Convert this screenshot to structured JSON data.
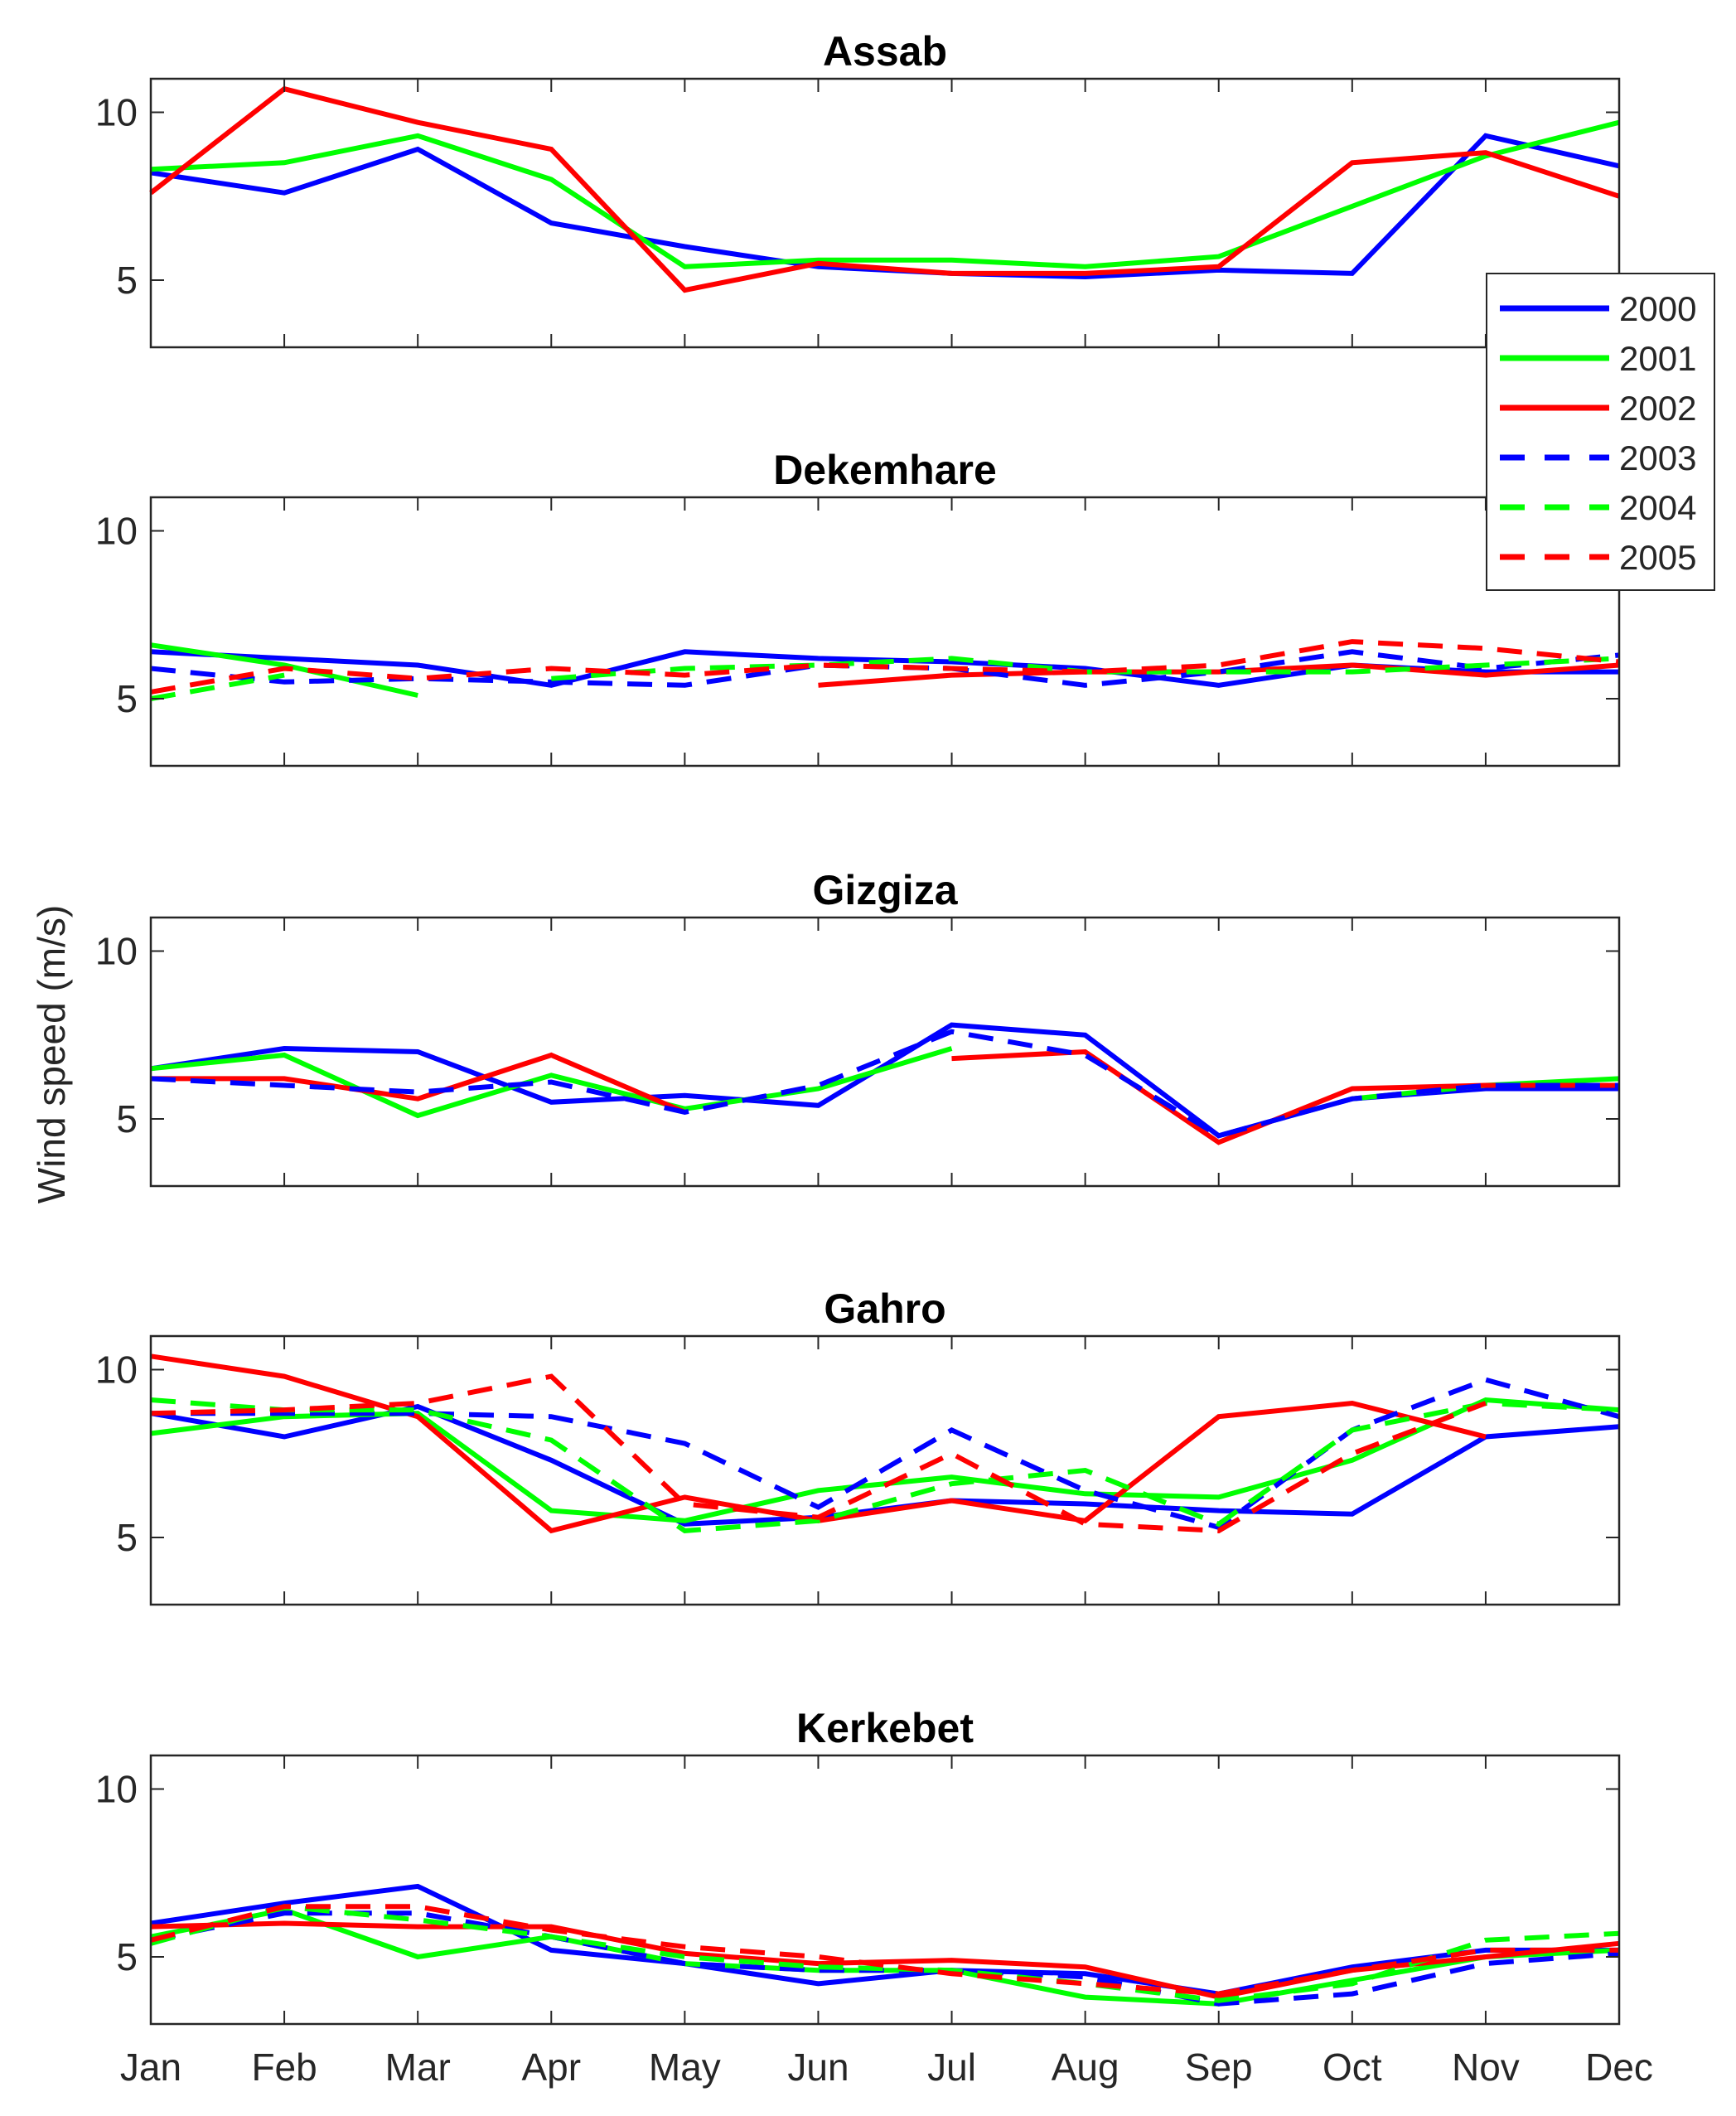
{
  "chart_data": {
    "type": "line",
    "ylabel": "Wind speed (m/s)",
    "categories": [
      "Jan",
      "Feb",
      "Mar",
      "Apr",
      "May",
      "Jun",
      "Jul",
      "Aug",
      "Sep",
      "Oct",
      "Nov",
      "Dec"
    ],
    "ylim": [
      3,
      11
    ],
    "yticks": [
      5,
      10
    ],
    "legend": {
      "position": "right",
      "entries": [
        {
          "name": "2000",
          "color": "#0000ff",
          "dash": "solid"
        },
        {
          "name": "2001",
          "color": "#00ff00",
          "dash": "solid"
        },
        {
          "name": "2002",
          "color": "#ff0000",
          "dash": "solid"
        },
        {
          "name": "2003",
          "color": "#0000ff",
          "dash": "dashed"
        },
        {
          "name": "2004",
          "color": "#00ff00",
          "dash": "dashed"
        },
        {
          "name": "2005",
          "color": "#ff0000",
          "dash": "dashed"
        }
      ]
    },
    "panels": [
      {
        "title": "Assab",
        "series": [
          {
            "name": "2000",
            "values": [
              8.2,
              7.6,
              8.9,
              6.7,
              6.0,
              5.4,
              5.2,
              5.1,
              5.3,
              5.2,
              9.3,
              8.4
            ]
          },
          {
            "name": "2001",
            "values": [
              8.3,
              8.5,
              9.3,
              8.0,
              5.4,
              5.6,
              5.6,
              5.4,
              5.7,
              7.2,
              8.7,
              9.7
            ]
          },
          {
            "name": "2002",
            "values": [
              7.6,
              10.7,
              9.7,
              8.9,
              4.7,
              5.5,
              5.2,
              5.2,
              5.4,
              8.5,
              8.8,
              7.5
            ]
          },
          {
            "name": "2003",
            "values": [
              null,
              null,
              null,
              null,
              null,
              null,
              null,
              null,
              null,
              null,
              null,
              null
            ]
          },
          {
            "name": "2004",
            "values": [
              null,
              null,
              null,
              null,
              null,
              null,
              null,
              null,
              null,
              null,
              null,
              null
            ]
          },
          {
            "name": "2005",
            "values": [
              null,
              null,
              null,
              null,
              null,
              null,
              null,
              null,
              null,
              null,
              null,
              null
            ]
          }
        ]
      },
      {
        "title": "Dekemhare",
        "series": [
          {
            "name": "2000",
            "values": [
              6.4,
              6.2,
              6.0,
              5.4,
              6.4,
              6.2,
              6.1,
              5.9,
              5.4,
              6.0,
              5.8,
              5.8
            ]
          },
          {
            "name": "2001",
            "values": [
              6.6,
              6.0,
              5.1,
              null,
              null,
              null,
              null,
              null,
              null,
              null,
              null,
              null
            ]
          },
          {
            "name": "2002",
            "values": [
              null,
              null,
              null,
              null,
              null,
              5.4,
              5.7,
              5.8,
              5.8,
              6.0,
              5.7,
              6.0
            ]
          },
          {
            "name": "2003",
            "values": [
              5.9,
              5.5,
              5.6,
              5.5,
              5.4,
              6.0,
              5.9,
              5.4,
              5.8,
              6.4,
              5.9,
              6.3
            ]
          },
          {
            "name": "2004",
            "values": [
              5.0,
              5.7,
              null,
              5.6,
              5.9,
              6.0,
              6.2,
              5.8,
              5.8,
              5.8,
              6.0,
              6.2
            ]
          },
          {
            "name": "2005",
            "values": [
              5.2,
              5.9,
              5.6,
              5.9,
              5.7,
              6.0,
              5.9,
              5.8,
              6.0,
              6.7,
              6.5,
              6.1
            ]
          }
        ]
      },
      {
        "title": "Gizgiza",
        "series": [
          {
            "name": "2000",
            "values": [
              6.5,
              7.1,
              7.0,
              5.5,
              5.7,
              5.4,
              7.8,
              7.5,
              4.5,
              5.6,
              5.9,
              5.9
            ]
          },
          {
            "name": "2001",
            "values": [
              6.5,
              6.9,
              5.1,
              6.3,
              5.3,
              5.9,
              7.1,
              null,
              null,
              5.6,
              6.0,
              6.2
            ]
          },
          {
            "name": "2002",
            "values": [
              6.2,
              6.2,
              5.6,
              6.9,
              5.2,
              null,
              6.8,
              7.0,
              4.3,
              5.9,
              6.0,
              6.0
            ]
          },
          {
            "name": "2003",
            "values": [
              6.2,
              6.0,
              5.8,
              6.1,
              5.2,
              6.0,
              7.6,
              6.9,
              4.5,
              5.6,
              6.0,
              6.0
            ]
          },
          {
            "name": "2004",
            "values": [
              null,
              null,
              null,
              null,
              null,
              null,
              null,
              null,
              null,
              null,
              null,
              null
            ]
          },
          {
            "name": "2005",
            "values": [
              null,
              null,
              null,
              null,
              null,
              null,
              null,
              null,
              null,
              null,
              null,
              null
            ]
          }
        ]
      },
      {
        "title": "Gahro",
        "series": [
          {
            "name": "2000",
            "values": [
              8.7,
              8.0,
              8.9,
              7.3,
              5.4,
              5.6,
              6.1,
              6.0,
              5.8,
              5.7,
              8.0,
              8.3
            ]
          },
          {
            "name": "2001",
            "values": [
              8.1,
              8.6,
              8.7,
              5.8,
              5.5,
              6.4,
              6.8,
              6.3,
              6.2,
              7.3,
              9.1,
              8.8
            ]
          },
          {
            "name": "2002",
            "values": [
              10.4,
              9.8,
              8.6,
              5.2,
              6.2,
              5.5,
              6.1,
              5.5,
              8.6,
              9.0,
              8.0,
              null
            ]
          },
          {
            "name": "2003",
            "values": [
              8.7,
              8.7,
              8.7,
              8.6,
              7.8,
              5.9,
              8.2,
              6.4,
              5.3,
              8.2,
              9.7,
              8.6
            ]
          },
          {
            "name": "2004",
            "values": [
              9.1,
              8.8,
              8.8,
              7.9,
              5.2,
              5.5,
              6.6,
              7.0,
              5.4,
              8.2,
              9.0,
              8.8
            ]
          },
          {
            "name": "2005",
            "values": [
              8.7,
              8.8,
              9.0,
              9.8,
              6.0,
              5.6,
              7.5,
              5.4,
              5.2,
              7.5,
              9.0,
              null
            ]
          }
        ]
      },
      {
        "title": "Kerkebet",
        "series": [
          {
            "name": "2000",
            "values": [
              6.0,
              6.6,
              7.1,
              5.2,
              4.8,
              4.2,
              4.6,
              4.5,
              3.9,
              4.7,
              5.2,
              5.2
            ]
          },
          {
            "name": "2001",
            "values": [
              5.6,
              6.4,
              5.0,
              5.6,
              4.8,
              4.6,
              4.6,
              3.8,
              3.6,
              4.3,
              5.0,
              5.2
            ]
          },
          {
            "name": "2002",
            "values": [
              5.9,
              6.0,
              5.9,
              5.9,
              5.1,
              4.8,
              4.9,
              4.7,
              3.8,
              4.6,
              5.0,
              5.4
            ]
          },
          {
            "name": "2003",
            "values": [
              5.5,
              6.3,
              6.3,
              5.6,
              4.8,
              4.6,
              4.6,
              4.4,
              3.6,
              3.9,
              4.8,
              5.1
            ]
          },
          {
            "name": "2004",
            "values": [
              5.4,
              6.5,
              6.1,
              5.6,
              5.0,
              4.7,
              4.6,
              4.2,
              3.7,
              4.2,
              5.5,
              5.7
            ]
          },
          {
            "name": "2005",
            "values": [
              5.5,
              6.5,
              6.5,
              5.8,
              5.3,
              5.0,
              4.5,
              4.2,
              3.9,
              4.6,
              5.2,
              5.2
            ]
          }
        ]
      }
    ]
  }
}
